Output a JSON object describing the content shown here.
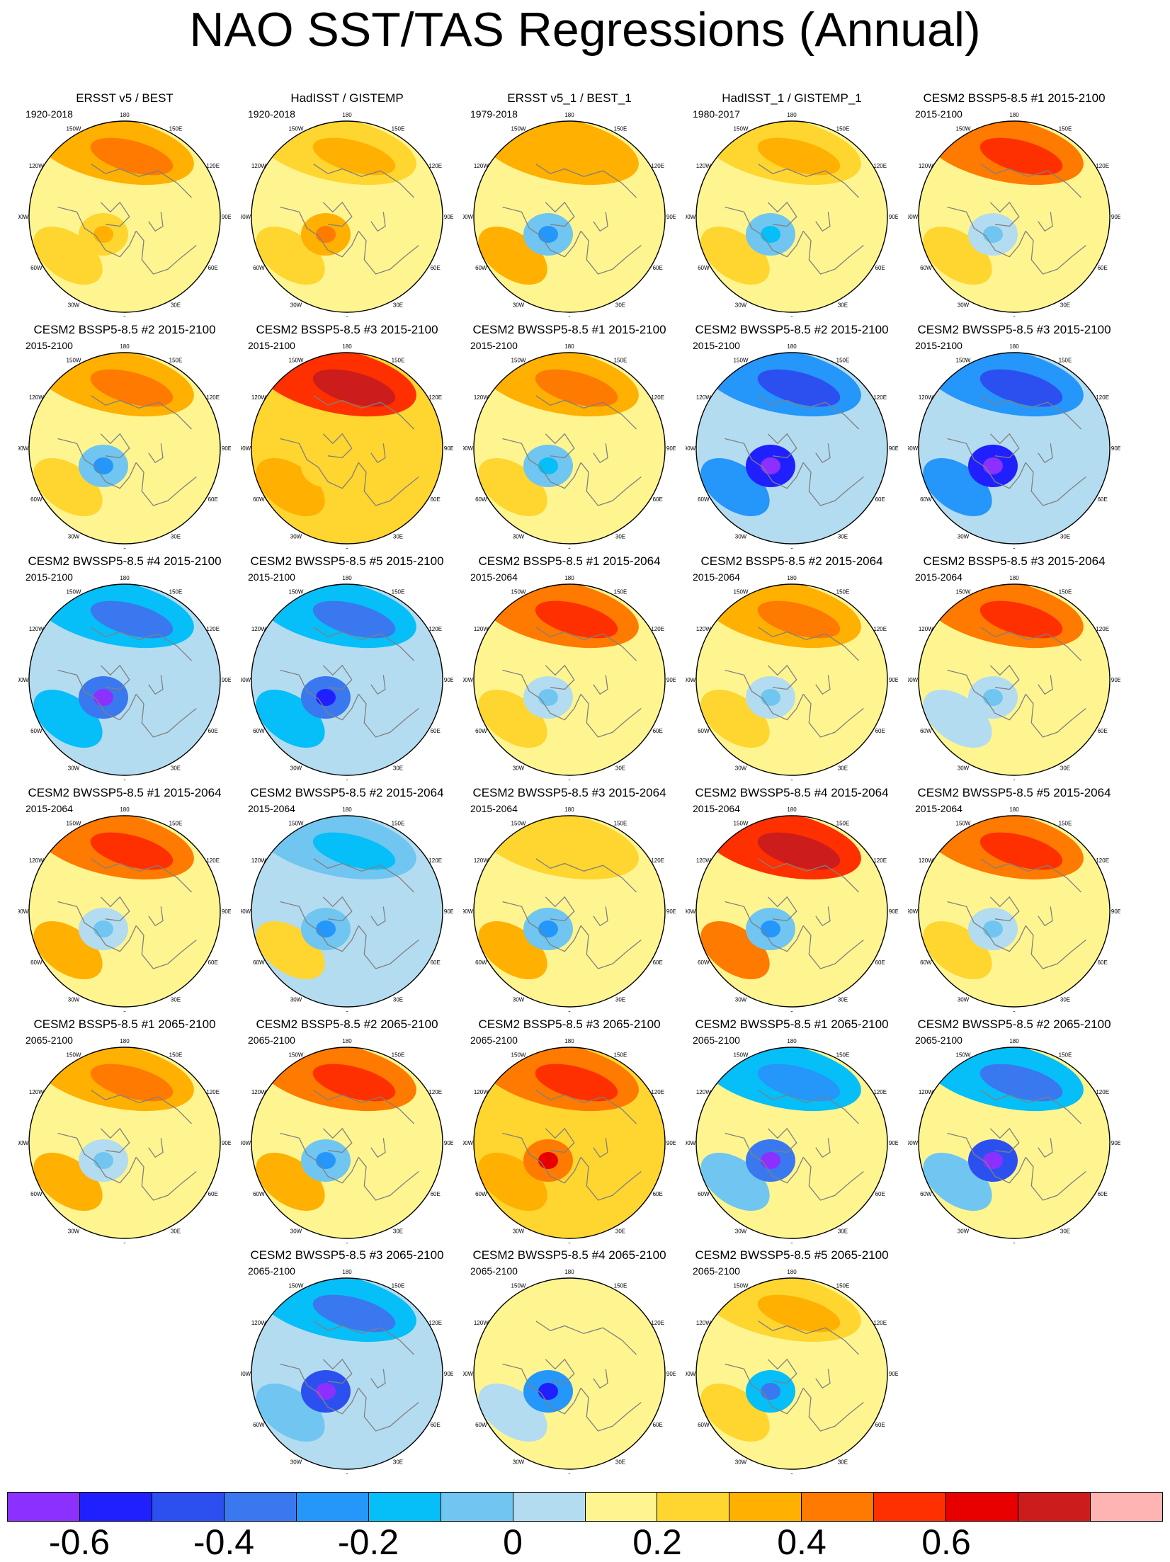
{
  "title": "NAO SST/TAS Regressions (Annual)",
  "lon_labels": [
    "180",
    "150E",
    "120E",
    "90E",
    "60E",
    "30E",
    "0",
    "30W",
    "60W",
    "90W",
    "120W",
    "150W"
  ],
  "panels": [
    {
      "title": "ERSST v5 / BEST",
      "period": "1920-2018",
      "pattern": {
        "n": 0.25,
        "l": 0.05,
        "a": 0.15,
        "s": 0.18
      }
    },
    {
      "title": "HadISST / GISTEMP",
      "period": "1920-2018",
      "pattern": {
        "n": 0.15,
        "l": 0.05,
        "a": 0.2,
        "s": 0.15
      }
    },
    {
      "title": "ERSST v5_1 / BEST_1",
      "period": "1979-2018",
      "pattern": {
        "n": 0.2,
        "l": 0.05,
        "a": -0.2,
        "s": 0.2
      }
    },
    {
      "title": "HadISST_1 / GISTEMP_1",
      "period": "1980-2017",
      "pattern": {
        "n": 0.15,
        "l": 0.05,
        "a": -0.15,
        "s": 0.15
      }
    },
    {
      "title": "CESM2 BSSP5-8.5 #1 2015-2100",
      "period": "2015-2100",
      "pattern": {
        "n": 0.3,
        "l": 0.05,
        "a": -0.1,
        "s": 0.18
      }
    },
    {
      "title": "CESM2 BSSP5-8.5 #2 2015-2100",
      "period": "2015-2100",
      "pattern": {
        "n": 0.25,
        "l": 0.05,
        "a": -0.2,
        "s": 0.15
      }
    },
    {
      "title": "CESM2 BSSP5-8.5 #3 2015-2100",
      "period": "2015-2100",
      "pattern": {
        "n": 0.45,
        "l": 0.15,
        "a": 0.1,
        "s": 0.25
      }
    },
    {
      "title": "CESM2 BWSSP5-8.5 #1 2015-2100",
      "period": "2015-2100",
      "pattern": {
        "n": 0.25,
        "l": 0.05,
        "a": -0.15,
        "s": 0.15
      }
    },
    {
      "title": "CESM2 BWSSP5-8.5 #2 2015-2100",
      "period": "2015-2100",
      "pattern": {
        "n": -0.4,
        "l": -0.05,
        "a": -0.7,
        "s": -0.35
      }
    },
    {
      "title": "CESM2 BWSSP5-8.5 #3 2015-2100",
      "period": "2015-2100",
      "pattern": {
        "n": -0.4,
        "l": -0.05,
        "a": -0.65,
        "s": -0.35
      }
    },
    {
      "title": "CESM2 BWSSP5-8.5 #4 2015-2100",
      "period": "2015-2100",
      "pattern": {
        "n": -0.3,
        "l": -0.05,
        "a": -0.5,
        "s": -0.3
      }
    },
    {
      "title": "CESM2 BWSSP5-8.5 #5 2015-2100",
      "period": "2015-2100",
      "pattern": {
        "n": -0.3,
        "l": -0.05,
        "a": -0.45,
        "s": -0.25
      }
    },
    {
      "title": "CESM2 BSSP5-8.5 #1 2015-2064",
      "period": "2015-2064",
      "pattern": {
        "n": 0.35,
        "l": 0.05,
        "a": -0.1,
        "s": 0.15
      }
    },
    {
      "title": "CESM2 BSSP5-8.5 #2 2015-2064",
      "period": "2015-2064",
      "pattern": {
        "n": 0.25,
        "l": 0.05,
        "a": -0.1,
        "s": 0.15
      }
    },
    {
      "title": "CESM2 BSSP5-8.5 #3 2015-2064",
      "period": "2015-2064",
      "pattern": {
        "n": 0.35,
        "l": 0.05,
        "a": -0.1,
        "s": -0.05
      }
    },
    {
      "title": "CESM2 BWSSP5-8.5 #1 2015-2064",
      "period": "2015-2064",
      "pattern": {
        "n": 0.35,
        "l": 0.05,
        "a": -0.1,
        "s": 0.25
      }
    },
    {
      "title": "CESM2 BWSSP5-8.5 #2 2015-2064",
      "period": "2015-2064",
      "pattern": {
        "n": -0.2,
        "l": -0.05,
        "a": -0.2,
        "s": 0.1
      }
    },
    {
      "title": "CESM2 BWSSP5-8.5 #3 2015-2064",
      "period": "2015-2064",
      "pattern": {
        "n": 0.1,
        "l": 0.05,
        "a": -0.2,
        "s": 0.2
      }
    },
    {
      "title": "CESM2 BWSSP5-8.5 #4 2015-2064",
      "period": "2015-2064",
      "pattern": {
        "n": 0.45,
        "l": 0.05,
        "a": -0.2,
        "s": 0.3
      }
    },
    {
      "title": "CESM2 BWSSP5-8.5 #5 2015-2064",
      "period": "2015-2064",
      "pattern": {
        "n": 0.3,
        "l": 0.05,
        "a": -0.1,
        "s": 0.15
      }
    },
    {
      "title": "CESM2 BSSP5-8.5 #1 2065-2100",
      "period": "2065-2100",
      "pattern": {
        "n": 0.25,
        "l": 0.05,
        "a": -0.1,
        "s": 0.2
      }
    },
    {
      "title": "CESM2 BSSP5-8.5 #2 2065-2100",
      "period": "2065-2100",
      "pattern": {
        "n": 0.3,
        "l": 0.05,
        "a": -0.2,
        "s": 0.2
      }
    },
    {
      "title": "CESM2 BSSP5-8.5 #3 2065-2100",
      "period": "2065-2100",
      "pattern": {
        "n": 0.35,
        "l": 0.1,
        "a": 0.35,
        "s": 0.25
      }
    },
    {
      "title": "CESM2 BWSSP5-8.5 #1 2065-2100",
      "period": "2065-2100",
      "pattern": {
        "n": -0.25,
        "l": 0.05,
        "a": -0.5,
        "s": -0.2
      }
    },
    {
      "title": "CESM2 BWSSP5-8.5 #2 2065-2100",
      "period": "2065-2100",
      "pattern": {
        "n": -0.3,
        "l": 0.05,
        "a": -0.6,
        "s": -0.15
      }
    },
    {
      "title": "CESM2 BWSSP5-8.5 #3 2065-2100",
      "period": "2065-2100",
      "pattern": {
        "n": -0.3,
        "l": -0.05,
        "a": -0.6,
        "s": -0.15
      }
    },
    {
      "title": "CESM2 BWSSP5-8.5 #4 2065-2100",
      "period": "2065-2100",
      "pattern": {
        "n": 0.05,
        "l": 0.05,
        "a": -0.4,
        "s": -0.1
      }
    },
    {
      "title": "CESM2 BWSSP5-8.5 #5 2065-2100",
      "period": "2065-2100",
      "pattern": {
        "n": 0.15,
        "l": 0.05,
        "a": -0.3,
        "s": 0.15
      }
    }
  ],
  "colorbar": {
    "colors": [
      "#8c30ff",
      "#2020ff",
      "#2c50f0",
      "#3a78ef",
      "#2596fa",
      "#06bef8",
      "#70c6f0",
      "#b4dcf0",
      "#fff590",
      "#ffd530",
      "#ffb000",
      "#ff7a00",
      "#ff3000",
      "#e80000",
      "#cc1c1c",
      "#ffb4b4"
    ],
    "bounds": [
      -0.7,
      -0.6,
      -0.5,
      -0.4,
      -0.3,
      -0.2,
      -0.1,
      0,
      0.1,
      0.2,
      0.3,
      0.4,
      0.5,
      0.6,
      0.7
    ],
    "labels": [
      "-0.6",
      "-0.4",
      "-0.2",
      "0",
      "0.2",
      "0.4",
      "0.6"
    ]
  }
}
